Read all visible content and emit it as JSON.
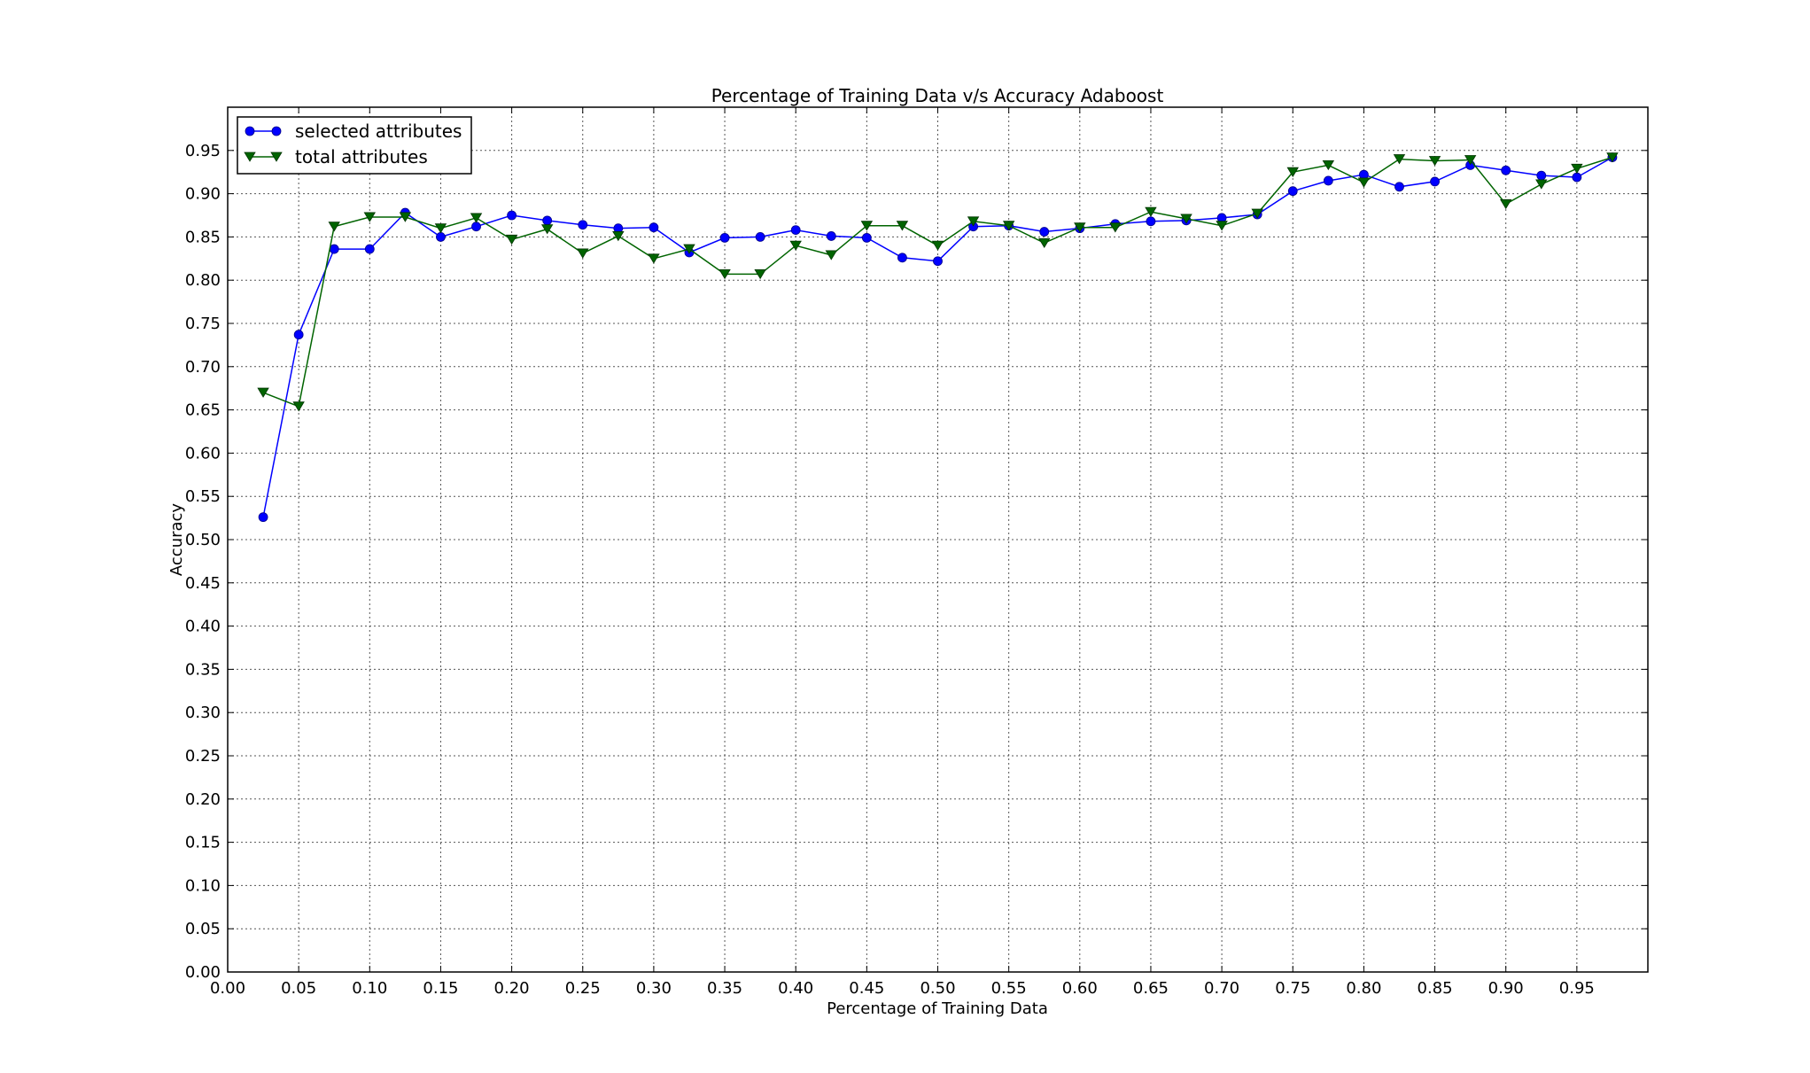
{
  "chart_data": {
    "type": "line",
    "title": "Percentage of Training Data v/s Accuracy Adaboost",
    "xlabel": "Percentage of Training Data",
    "ylabel": "Accuracy",
    "xlim": [
      0.0,
      1.0
    ],
    "ylim": [
      0.0,
      1.0
    ],
    "grid": true,
    "legend_position": "top-left",
    "x_ticks": [
      "0.00",
      "0.05",
      "0.10",
      "0.15",
      "0.20",
      "0.25",
      "0.30",
      "0.35",
      "0.40",
      "0.45",
      "0.50",
      "0.55",
      "0.60",
      "0.65",
      "0.70",
      "0.75",
      "0.80",
      "0.85",
      "0.90",
      "0.95"
    ],
    "y_ticks": [
      "0.00",
      "0.05",
      "0.10",
      "0.15",
      "0.20",
      "0.25",
      "0.30",
      "0.35",
      "0.40",
      "0.45",
      "0.50",
      "0.55",
      "0.60",
      "0.65",
      "0.70",
      "0.75",
      "0.80",
      "0.85",
      "0.90",
      "0.95"
    ],
    "x": [
      0.025,
      0.05,
      0.075,
      0.1,
      0.125,
      0.15,
      0.175,
      0.2,
      0.225,
      0.25,
      0.275,
      0.3,
      0.325,
      0.35,
      0.375,
      0.4,
      0.425,
      0.45,
      0.475,
      0.5,
      0.525,
      0.55,
      0.575,
      0.6,
      0.625,
      0.65,
      0.675,
      0.7,
      0.725,
      0.75,
      0.775,
      0.8,
      0.825,
      0.85,
      0.875,
      0.9,
      0.925,
      0.95,
      0.975
    ],
    "series": [
      {
        "name": "selected attributes",
        "color": "#0000ff",
        "marker": "circle",
        "values": [
          0.526,
          0.737,
          0.836,
          0.836,
          0.878,
          0.85,
          0.862,
          0.875,
          0.869,
          0.864,
          0.86,
          0.861,
          0.832,
          0.849,
          0.85,
          0.858,
          0.851,
          0.849,
          0.826,
          0.822,
          0.862,
          0.863,
          0.856,
          0.86,
          0.865,
          0.868,
          0.869,
          0.872,
          0.876,
          0.903,
          0.915,
          0.922,
          0.908,
          0.914,
          0.933,
          0.927,
          0.921,
          0.919,
          0.942
        ]
      },
      {
        "name": "total attributes",
        "color": "#006400",
        "marker": "triangle-down",
        "values": [
          0.67,
          0.654,
          0.862,
          0.873,
          0.873,
          0.86,
          0.872,
          0.847,
          0.859,
          0.831,
          0.851,
          0.825,
          0.836,
          0.807,
          0.807,
          0.84,
          0.829,
          0.863,
          0.863,
          0.84,
          0.868,
          0.863,
          0.843,
          0.861,
          0.861,
          0.879,
          0.871,
          0.863,
          0.877,
          0.925,
          0.933,
          0.913,
          0.94,
          0.938,
          0.939,
          0.888,
          0.911,
          0.929,
          0.942
        ]
      }
    ]
  }
}
